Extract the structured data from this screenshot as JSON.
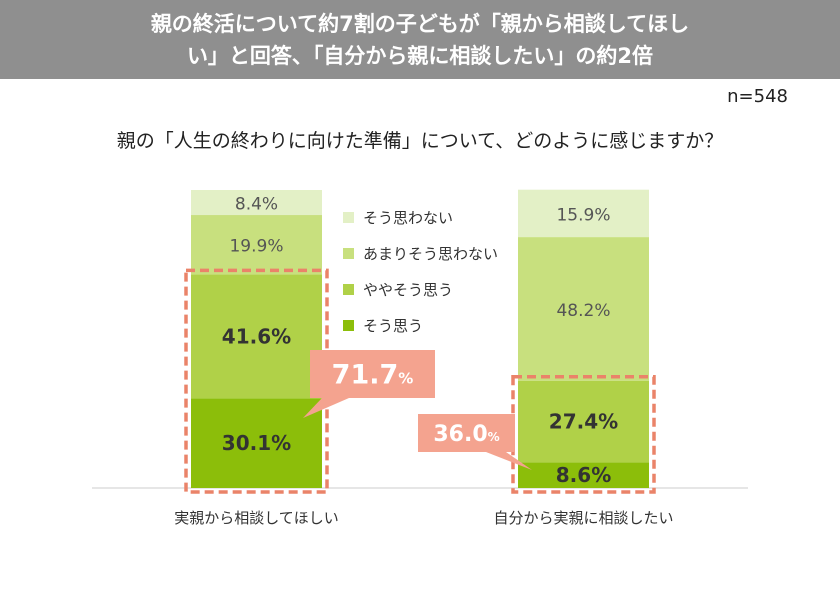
{
  "title_lines": [
    "親の終活について約7割の子どもが「親から相談してほし",
    "い」と回答、「自分から親に相談したい」の約2倍"
  ],
  "sample_size": "n=548",
  "question": "親の「人生の終わりに向けた準備」について、どのように感じますか？",
  "colors": {
    "banner": "#8f8f8f",
    "soukonai": "#e3f0c6",
    "amari": "#c8e07e",
    "yaya": "#b0d148",
    "sou": "#8cbe0a",
    "callout": "#f4a38f",
    "callout_text": "#ffffff",
    "dash": "#ea8369",
    "axis": "#cccccc"
  },
  "chart_data": {
    "type": "bar",
    "stacked": true,
    "categories": [
      "実親から相談してほしい",
      "自分から実親に相談したい"
    ],
    "series": [
      {
        "name": "そう思う",
        "values": [
          30.1,
          8.6
        ],
        "labels": [
          "30.1%",
          "8.6%"
        ],
        "color_key": "sou"
      },
      {
        "name": "ややそう思う",
        "values": [
          41.6,
          27.4
        ],
        "labels": [
          "41.6%",
          "27.4%"
        ],
        "color_key": "yaya"
      },
      {
        "name": "あまりそう思わない",
        "values": [
          19.9,
          48.2
        ],
        "labels": [
          "19.9%",
          "48.2%"
        ],
        "color_key": "amari"
      },
      {
        "name": "そう思わない",
        "values": [
          8.4,
          15.9
        ],
        "labels": [
          "8.4%",
          "15.9%"
        ],
        "color_key": "soukonai"
      }
    ],
    "ylim": [
      0,
      100
    ],
    "callouts": [
      {
        "value": 71.7,
        "text": "71.7",
        "unit": "%"
      },
      {
        "value": 36.0,
        "text": "36.0",
        "unit": "%"
      }
    ]
  }
}
